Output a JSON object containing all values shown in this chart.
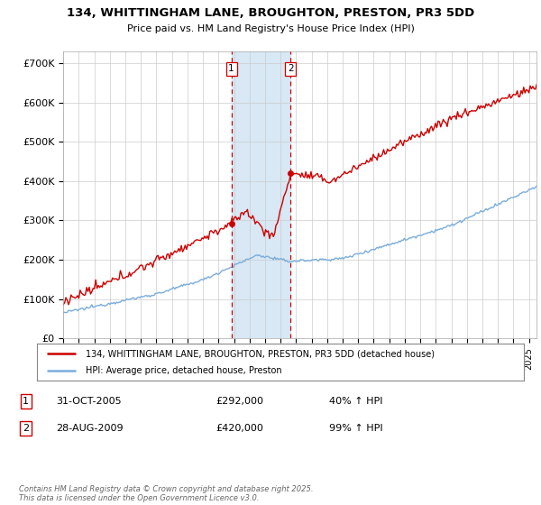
{
  "title": "134, WHITTINGHAM LANE, BROUGHTON, PRESTON, PR3 5DD",
  "subtitle": "Price paid vs. HM Land Registry's House Price Index (HPI)",
  "ylabel_ticks": [
    "£0",
    "£100K",
    "£200K",
    "£300K",
    "£400K",
    "£500K",
    "£600K",
    "£700K"
  ],
  "ytick_vals": [
    0,
    100000,
    200000,
    300000,
    400000,
    500000,
    600000,
    700000
  ],
  "ylim": [
    0,
    730000
  ],
  "xlim_start": 1995.0,
  "xlim_end": 2025.5,
  "purchase1_x": 2005.83,
  "purchase1_y": 292000,
  "purchase2_x": 2009.65,
  "purchase2_y": 420000,
  "shade_color": "#d8e8f5",
  "vline_color": "#cc0000",
  "legend_label_red": "134, WHITTINGHAM LANE, BROUGHTON, PRESTON, PR3 5DD (detached house)",
  "legend_label_blue": "HPI: Average price, detached house, Preston",
  "note1_label": "1",
  "note1_date": "31-OCT-2005",
  "note1_price": "£292,000",
  "note1_hpi": "40% ↑ HPI",
  "note2_label": "2",
  "note2_date": "28-AUG-2009",
  "note2_price": "£420,000",
  "note2_hpi": "99% ↑ HPI",
  "footer": "Contains HM Land Registry data © Crown copyright and database right 2025.\nThis data is licensed under the Open Government Licence v3.0.",
  "red_color": "#cc0000",
  "blue_color": "#7aaddc",
  "background_color": "#ffffff",
  "grid_color": "#cccccc"
}
